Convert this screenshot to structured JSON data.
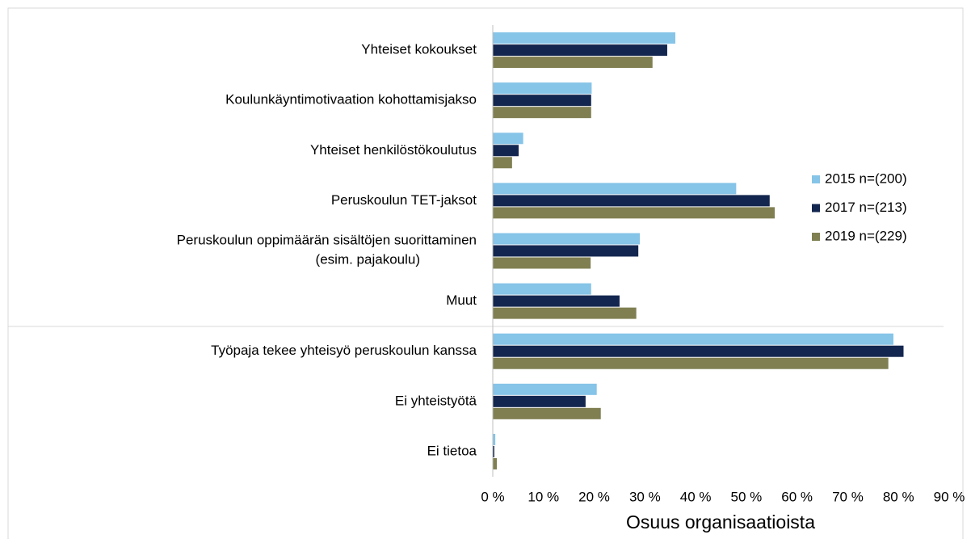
{
  "chart_data": {
    "type": "barh",
    "x_label": "Osuus organisaatioista",
    "categories": [
      "Yhteiset kokoukset",
      "Koulunkäyntimotivaation kohottamisjakso",
      "Yhteiset henkilöstökoulutus",
      "Peruskoulun TET-jaksot",
      "Peruskoulun oppimäärän sisältöjen suorittaminen\n(esim. pajakoulu)",
      "Muut",
      "Työpaja tekee yhteisyö peruskoulun kanssa",
      "Ei yhteistyötä",
      "Ei tietoa"
    ],
    "series": [
      {
        "name": "2015 n=(200)",
        "color": "#86c4e8",
        "values": [
          36,
          19.5,
          6,
          48,
          29,
          19.4,
          79,
          20.5,
          0.5
        ]
      },
      {
        "name": "2017 n=(213)",
        "color": "#13264f",
        "values": [
          34.4,
          19.4,
          5.1,
          54.6,
          28.7,
          25,
          81,
          18.3,
          0.3
        ]
      },
      {
        "name": "2019 n=(229)",
        "color": "#7f7f52",
        "values": [
          31.5,
          19.4,
          3.8,
          55.6,
          19.3,
          28.3,
          78,
          21.3,
          0.8
        ]
      }
    ],
    "xlim": [
      0,
      90
    ],
    "xticks": [
      {
        "value": 0,
        "label": "0 %"
      },
      {
        "value": 10,
        "label": "10 %"
      },
      {
        "value": 20,
        "label": "20 %"
      },
      {
        "value": 30,
        "label": "30 %"
      },
      {
        "value": 40,
        "label": "40 %"
      },
      {
        "value": 50,
        "label": "50 %"
      },
      {
        "value": 60,
        "label": "60 %"
      },
      {
        "value": 70,
        "label": "70 %"
      },
      {
        "value": 80,
        "label": "80 %"
      },
      {
        "value": 90,
        "label": "90 %"
      }
    ],
    "legend": "right"
  }
}
